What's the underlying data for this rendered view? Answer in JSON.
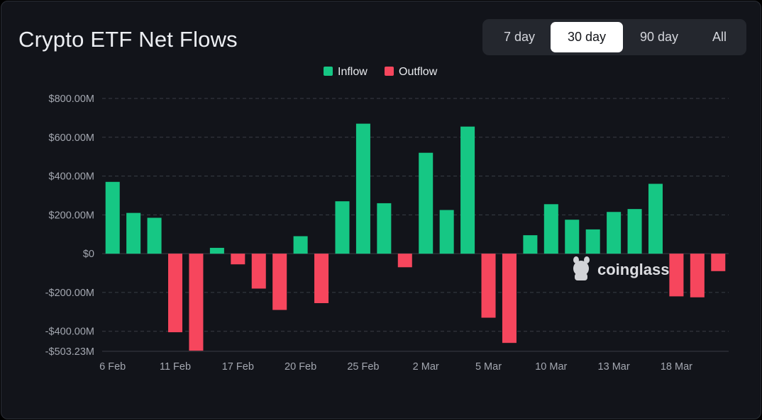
{
  "title": "Crypto ETF Net Flows",
  "ranges": [
    {
      "label": "7 day",
      "active": false
    },
    {
      "label": "30 day",
      "active": true
    },
    {
      "label": "90 day",
      "active": false
    },
    {
      "label": "All",
      "active": false
    }
  ],
  "watermark": "coinglass",
  "colors": {
    "inflow": "#16c784",
    "outflow": "#f6465d",
    "grid": "#3a3d45",
    "background": "#12141a"
  },
  "chart_data": {
    "type": "bar",
    "title": "",
    "xlabel": "",
    "ylabel": "",
    "legend": {
      "position": "top-center",
      "items": [
        "Inflow",
        "Outflow"
      ]
    },
    "ylim": [
      -503.23,
      800
    ],
    "y_ticks": [
      800,
      600,
      400,
      200,
      0,
      -200,
      -400,
      -503.23
    ],
    "y_tick_labels": [
      "$800.00M",
      "$600.00M",
      "$400.00M",
      "$200.00M",
      "$0",
      "-$200.00M",
      "-$400.00M",
      "-$503.23M"
    ],
    "grid": true,
    "x_tick_labels": [
      {
        "index": 0,
        "label": "6 Feb"
      },
      {
        "index": 3,
        "label": "11 Feb"
      },
      {
        "index": 6,
        "label": "17 Feb"
      },
      {
        "index": 9,
        "label": "20 Feb"
      },
      {
        "index": 12,
        "label": "25 Feb"
      },
      {
        "index": 15,
        "label": "2 Mar"
      },
      {
        "index": 18,
        "label": "5 Mar"
      },
      {
        "index": 21,
        "label": "10 Mar"
      },
      {
        "index": 24,
        "label": "13 Mar"
      },
      {
        "index": 27,
        "label": "18 Mar"
      }
    ],
    "values": [
      370,
      210,
      185,
      -405,
      -500,
      30,
      -55,
      -180,
      -290,
      90,
      -255,
      270,
      670,
      260,
      -70,
      520,
      225,
      655,
      -330,
      -460,
      95,
      255,
      175,
      125,
      215,
      230,
      360,
      -220,
      -225,
      -90
    ]
  }
}
